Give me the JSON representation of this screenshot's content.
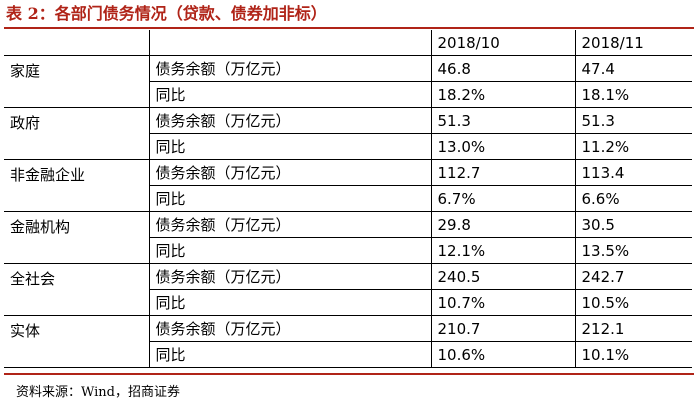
{
  "title": "表 2：各部门债务情况（贷款、债券加非标）",
  "table": {
    "header": [
      "",
      "",
      "2018/10",
      "2018/11"
    ],
    "groups": [
      {
        "category": "家庭",
        "rows": [
          {
            "metric": "债务余额（万亿元）",
            "v1": "46.8",
            "v2": "47.4"
          },
          {
            "metric": "同比",
            "v1": "18.2%",
            "v2": "18.1%"
          }
        ]
      },
      {
        "category": "政府",
        "rows": [
          {
            "metric": "债务余额（万亿元）",
            "v1": "51.3",
            "v2": "51.3"
          },
          {
            "metric": "同比",
            "v1": "13.0%",
            "v2": "11.2%"
          }
        ]
      },
      {
        "category": "非金融企业",
        "rows": [
          {
            "metric": "债务余额（万亿元）",
            "v1": "112.7",
            "v2": "113.4"
          },
          {
            "metric": "同比",
            "v1": "6.7%",
            "v2": "6.6%"
          }
        ]
      },
      {
        "category": "金融机构",
        "rows": [
          {
            "metric": "债务余额（万亿元）",
            "v1": "29.8",
            "v2": "30.5"
          },
          {
            "metric": "同比",
            "v1": "12.1%",
            "v2": "13.5%"
          }
        ]
      },
      {
        "category": "全社会",
        "rows": [
          {
            "metric": "债务余额（万亿元）",
            "v1": "240.5",
            "v2": "242.7"
          },
          {
            "metric": "同比",
            "v1": "10.7%",
            "v2": "10.5%"
          }
        ]
      },
      {
        "category": "实体",
        "rows": [
          {
            "metric": "债务余额（万亿元）",
            "v1": "210.7",
            "v2": "212.1"
          },
          {
            "metric": "同比",
            "v1": "10.6%",
            "v2": "10.1%"
          }
        ]
      }
    ]
  },
  "source": "资料来源：Wind，招商证券",
  "colors": {
    "accent": "#b02418"
  }
}
